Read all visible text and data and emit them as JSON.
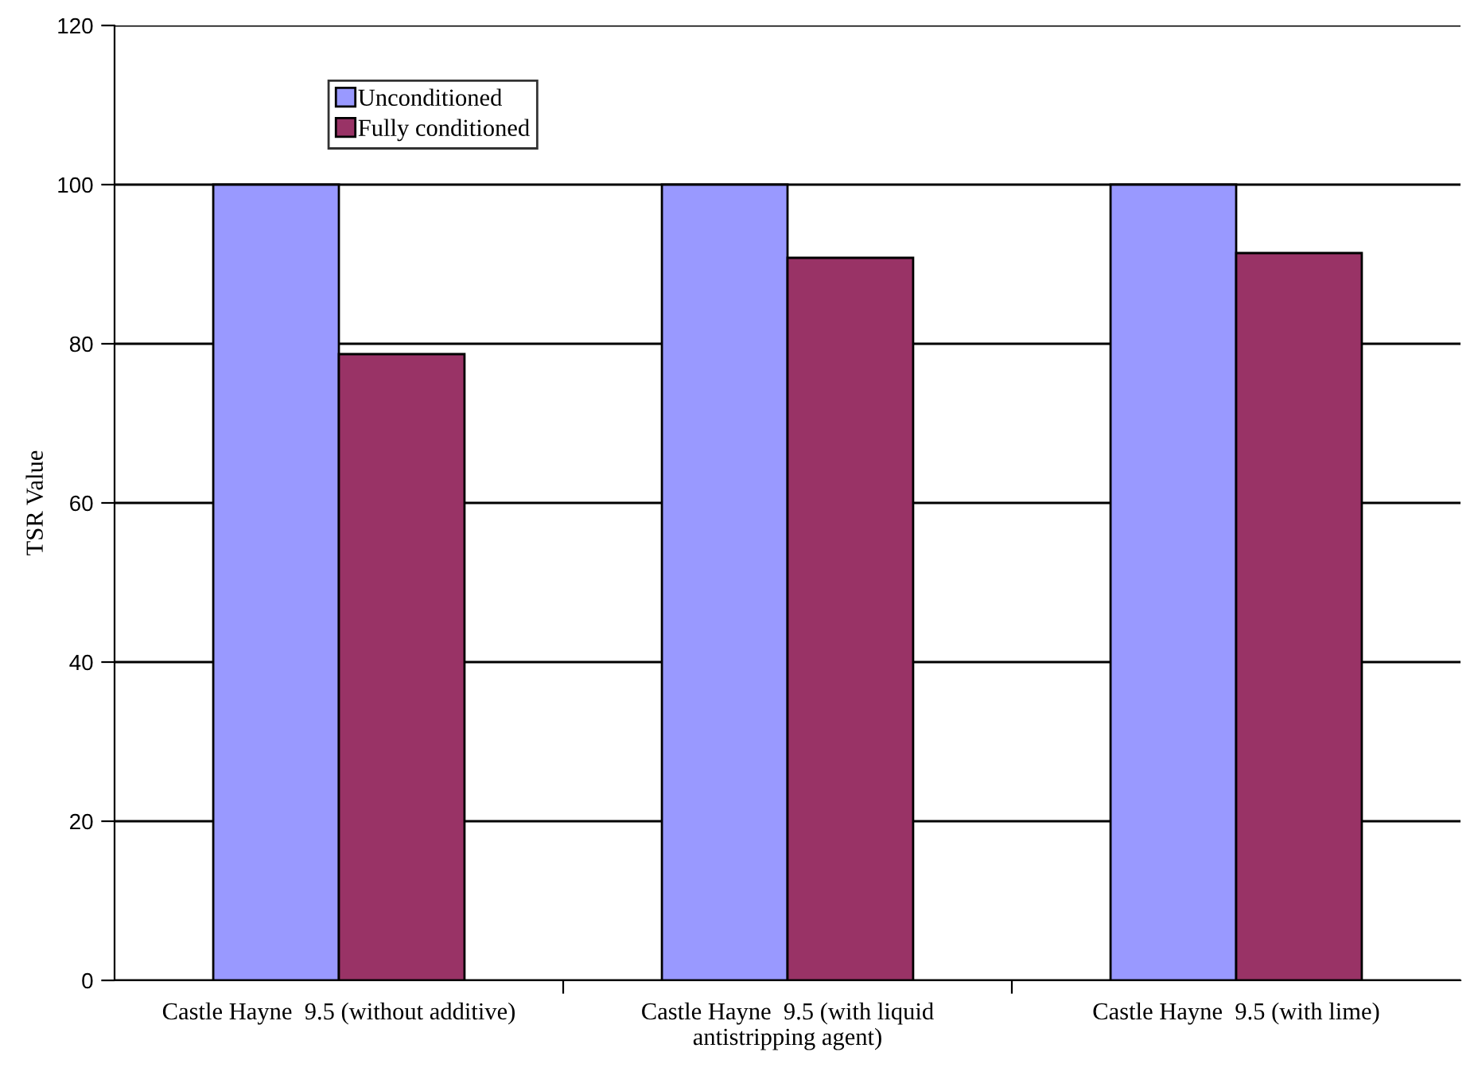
{
  "chart_data": {
    "type": "bar",
    "ylabel": "TSR Value",
    "categories": [
      "Castle Hayne  9.5 (without additive)",
      "Castle Hayne  9.5 (with liquid\nantistripping agent)",
      "Castle Hayne  9.5 (with lime)"
    ],
    "series": [
      {
        "name": "Unconditioned",
        "color": "#9999ff",
        "values": [
          100,
          100,
          100
        ]
      },
      {
        "name": "Fully conditioned",
        "color": "#993366",
        "values": [
          78.7,
          90.8,
          91.4
        ]
      }
    ],
    "ylim": [
      0,
      120
    ],
    "yticks": [
      0,
      20,
      40,
      60,
      80,
      100,
      120
    ],
    "grid": "y",
    "legend": "top left"
  }
}
